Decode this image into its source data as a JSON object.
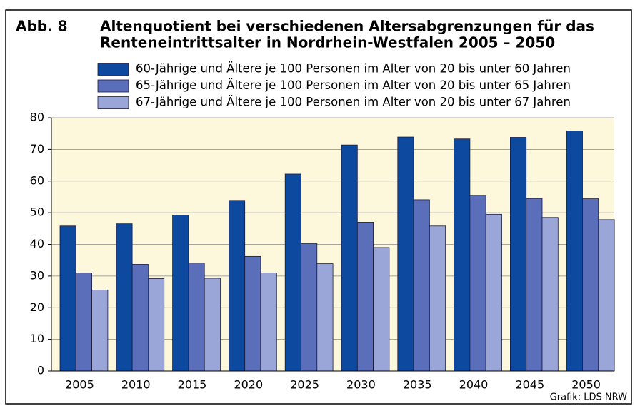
{
  "chart_data": {
    "type": "bar",
    "figure_label": "Abb. 8",
    "title_lines": [
      "Altenquotient bei verschiedenen Altersabgrenzungen für das",
      "Renteneintrittsalter in Nordrhein-Westfalen 2005 – 2050"
    ],
    "categories": [
      "2005",
      "2010",
      "2015",
      "2020",
      "2025",
      "2030",
      "2035",
      "2040",
      "2045",
      "2050"
    ],
    "series": [
      {
        "name": "60-Jährige und Ältere je 100 Personen im Alter von 20 bis unter 60 Jahren",
        "color": "#0d4a9f",
        "values": [
          45.8,
          46.5,
          49.2,
          53.9,
          62.2,
          71.4,
          73.9,
          73.3,
          73.8,
          75.8
        ]
      },
      {
        "name": "65-Jährige und Ältere je 100 Personen im Alter von 20 bis unter 65 Jahren",
        "color": "#5a6eba",
        "values": [
          31.0,
          33.7,
          34.1,
          36.2,
          40.3,
          47.0,
          54.1,
          55.5,
          54.5,
          54.4
        ]
      },
      {
        "name": "67-Jährige und Ältere je 100 Personen im Alter von 20 bis unter 67 Jahren",
        "color": "#9aa6d8",
        "values": [
          25.6,
          29.2,
          29.3,
          31.0,
          33.9,
          39.0,
          45.8,
          49.5,
          48.5,
          47.8
        ]
      }
    ],
    "ylim": [
      0,
      80
    ],
    "yticks": [
      0,
      10,
      20,
      30,
      40,
      50,
      60,
      70,
      80
    ],
    "grid": true,
    "source": "Grafik: LDS NRW"
  }
}
